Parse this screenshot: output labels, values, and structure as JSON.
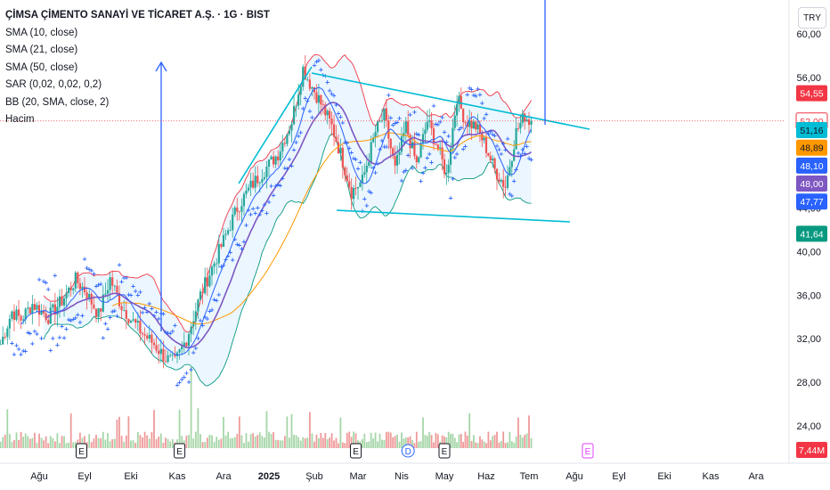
{
  "header": {
    "title": "ÇİMSA ÇİMENTO SANAYİ VE TİCARET A.Ş. · 1G · BIST",
    "indicators": [
      "SMA (10, close)",
      "SMA (21, close)",
      "SMA (50, close)",
      "SAR (0,02, 0,02, 0,2)",
      "BB (20, SMA, close, 2)",
      "Hacim"
    ],
    "currency_button": "TRY"
  },
  "colors": {
    "up": "#26a69a",
    "down": "#ef5350",
    "sma10": "#2962ff",
    "sma21": "#7e57c2",
    "sma50": "#ff9800",
    "sar": "#2962ff",
    "bb_upper": "#f23645",
    "bb_lower": "#089981",
    "bb_fill": "#e3f2fd",
    "trend": "#00bcd4",
    "arrow": "#2962ff",
    "earnings": "#e040fb"
  },
  "chart_data": {
    "type": "candlestick",
    "symbol": "ÇİMSA ÇİMENTO SANAYİ VE TİCARET A.Ş.",
    "interval": "1G",
    "exchange": "BIST",
    "y_axis": {
      "ticks": [
        "60,00",
        "56,00",
        "52,00",
        "48,00",
        "44,00",
        "40,00",
        "36,00",
        "32,00",
        "28,00",
        "24,00"
      ],
      "range": [
        22.5,
        63.5
      ]
    },
    "x_axis": {
      "ticks": [
        "Ağu",
        "Eyl",
        "Eki",
        "Kas",
        "Ara",
        "2025",
        "Şub",
        "Mar",
        "Nis",
        "May",
        "Haz",
        "Tem",
        "Ağu",
        "Eyl",
        "Eki",
        "Kas",
        "Ara"
      ],
      "bold": [
        "2025"
      ]
    },
    "price_labels": [
      {
        "value": "54,55",
        "bg": "#f23645",
        "fg": "#ffffff",
        "y_value": 54.55
      },
      {
        "value": "52,00",
        "bg": "#ffffff",
        "fg": "#f23645",
        "y_value": 52.0,
        "outline": true
      },
      {
        "value": "51,16",
        "bg": "#00bcd4",
        "fg": "#131722",
        "y_value": 51.16
      },
      {
        "value": "48,89",
        "bg": "#ff9800",
        "fg": "#131722",
        "y_value": 49.55
      },
      {
        "value": "48,10",
        "bg": "#2962ff",
        "fg": "#ffffff",
        "y_value": 47.9
      },
      {
        "value": "48,00",
        "bg": "#7e57c2",
        "fg": "#ffffff",
        "y_value": 46.25
      },
      {
        "value": "47,77",
        "bg": "#2962ff",
        "fg": "#ffffff",
        "y_value": 44.6
      },
      {
        "value": "41,64",
        "bg": "#089981",
        "fg": "#ffffff",
        "y_value": 41.64
      },
      {
        "value": "7,44M",
        "bg": "#f23645",
        "fg": "#ffffff",
        "y_value": 23.1
      }
    ],
    "events": [
      {
        "label": "E",
        "type": "earnings",
        "month_index": 0.5
      },
      {
        "label": "E",
        "type": "earnings",
        "month_index": 3.05
      },
      {
        "label": "E",
        "type": "earnings",
        "month_index": 6.95
      },
      {
        "label": "D",
        "type": "dividend",
        "month_index": 8.15
      },
      {
        "label": "E",
        "type": "earnings",
        "month_index": 9.0
      },
      {
        "label": "E",
        "type": "earnings-future",
        "month_index": 12.3
      }
    ],
    "key_levels": {
      "dotted_line": 52.0,
      "last_close": 52.0
    },
    "approx_closes_by_month": [
      {
        "month": "Ağu",
        "close": 35.5
      },
      {
        "month": "Eyl",
        "close": 36.8
      },
      {
        "month": "Eki",
        "close": 33.5
      },
      {
        "month": "Kas",
        "close": 33.0
      },
      {
        "month": "Ara",
        "close": 42.5
      },
      {
        "month": "2025",
        "close": 48.0
      },
      {
        "month": "Şub",
        "close": 54.0
      },
      {
        "month": "Mar",
        "close": 47.0
      },
      {
        "month": "Nis",
        "close": 49.0
      },
      {
        "month": "May",
        "close": 53.0
      },
      {
        "month": "Haz",
        "close": 48.5
      },
      {
        "month": "Tem",
        "close": 52.0
      }
    ],
    "grid": false,
    "legend": "top-left"
  }
}
